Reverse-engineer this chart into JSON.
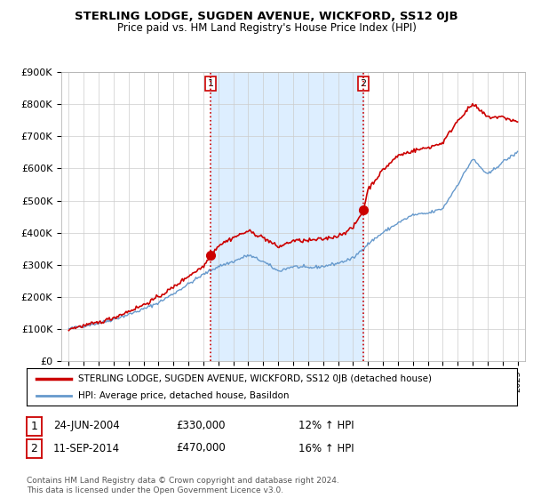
{
  "title": "STERLING LODGE, SUGDEN AVENUE, WICKFORD, SS12 0JB",
  "subtitle": "Price paid vs. HM Land Registry's House Price Index (HPI)",
  "legend_label_red": "STERLING LODGE, SUGDEN AVENUE, WICKFORD, SS12 0JB (detached house)",
  "legend_label_blue": "HPI: Average price, detached house, Basildon",
  "annotation1_date": "24-JUN-2004",
  "annotation1_price": "£330,000",
  "annotation1_hpi": "12% ↑ HPI",
  "annotation2_date": "11-SEP-2014",
  "annotation2_price": "£470,000",
  "annotation2_hpi": "16% ↑ HPI",
  "footnote": "Contains HM Land Registry data © Crown copyright and database right 2024.\nThis data is licensed under the Open Government Licence v3.0.",
  "red_color": "#cc0000",
  "blue_color": "#6699cc",
  "vline_color": "#cc0000",
  "shading_color": "#ddeeff",
  "background_color": "#ffffff",
  "grid_color": "#cccccc",
  "ylim": [
    0,
    900000
  ],
  "yticks": [
    0,
    100000,
    200000,
    300000,
    400000,
    500000,
    600000,
    700000,
    800000,
    900000
  ],
  "ytick_labels": [
    "£0",
    "£100K",
    "£200K",
    "£300K",
    "£400K",
    "£500K",
    "£600K",
    "£700K",
    "£800K",
    "£900K"
  ],
  "sale1_year": 2004.48,
  "sale1_price": 330000,
  "sale2_year": 2014.69,
  "sale2_price": 470000,
  "key_years_hpi": [
    1995,
    1996,
    1997,
    1998,
    1999,
    2000,
    2001,
    2002,
    2003,
    2004,
    2005,
    2006,
    2007,
    2008,
    2009,
    2010,
    2011,
    2012,
    2013,
    2014,
    2015,
    2016,
    2017,
    2018,
    2019,
    2020,
    2021,
    2022,
    2023,
    2024,
    2025
  ],
  "key_vals_hpi": [
    100000,
    110000,
    118000,
    130000,
    145000,
    162000,
    182000,
    210000,
    240000,
    270000,
    295000,
    310000,
    330000,
    310000,
    280000,
    295000,
    290000,
    295000,
    305000,
    320000,
    365000,
    400000,
    430000,
    455000,
    460000,
    475000,
    550000,
    630000,
    580000,
    620000,
    650000
  ],
  "key_years_red": [
    1995,
    1996,
    1997,
    1998,
    1999,
    2000,
    2001,
    2002,
    2003,
    2004,
    2004.5,
    2005,
    2006,
    2007,
    2008,
    2009,
    2010,
    2011,
    2012,
    2013,
    2014,
    2014.7,
    2015,
    2016,
    2017,
    2018,
    2019,
    2020,
    2021,
    2022,
    2022.5,
    2023,
    2024,
    2025
  ],
  "key_vals_red": [
    100000,
    110000,
    120000,
    135000,
    155000,
    175000,
    200000,
    230000,
    265000,
    295000,
    330000,
    360000,
    385000,
    405000,
    385000,
    355000,
    375000,
    375000,
    380000,
    390000,
    415000,
    470000,
    535000,
    595000,
    640000,
    655000,
    665000,
    680000,
    750000,
    800000,
    780000,
    760000,
    760000,
    745000
  ]
}
